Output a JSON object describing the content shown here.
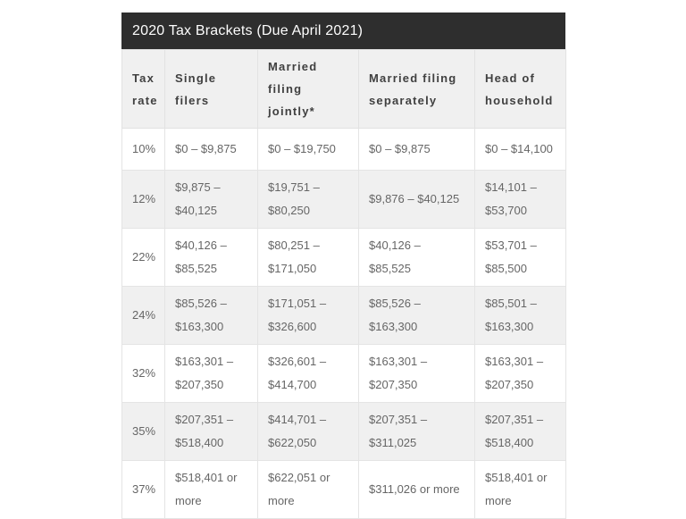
{
  "table": {
    "title": "2020 Tax Brackets (Due April 2021)",
    "columns": [
      "Tax\nrate",
      "Single filers",
      "Married filing\njointly*",
      "Married filing\nseparately",
      "Head of\nhousehold"
    ],
    "rows": [
      [
        "10%",
        "$0 – $9,875",
        "$0 – $19,750",
        "$0 – $9,875",
        "$0 – $14,100"
      ],
      [
        "12%",
        "$9,875 –\n$40,125",
        "$19,751 –\n$80,250",
        "$9,876 – $40,125",
        "$14,101 –\n$53,700"
      ],
      [
        "22%",
        "$40,126 –\n$85,525",
        "$80,251 –\n$171,050",
        "$40,126 –\n$85,525",
        "$53,701 –\n$85,500"
      ],
      [
        "24%",
        "$85,526 –\n$163,300",
        "$171,051 –\n$326,600",
        "$85,526 –\n$163,300",
        "$85,501 –\n$163,300"
      ],
      [
        "32%",
        "$163,301 –\n$207,350",
        "$326,601 –\n$414,700",
        "$163,301 –\n$207,350",
        "$163,301 –\n$207,350"
      ],
      [
        "35%",
        "$207,351 –\n$518,400",
        "$414,701 –\n$622,050",
        "$207,351 –\n$311,025",
        "$207,351 –\n$518,400"
      ],
      [
        "37%",
        "$518,401 or\nmore",
        "$622,051 or\nmore",
        "$311,026 or more",
        "$518,401 or\nmore"
      ]
    ]
  },
  "chart_data": {
    "type": "table",
    "title": "2020 Tax Brackets (Due April 2021)",
    "columns": [
      "Tax rate",
      "Single filers",
      "Married filing jointly*",
      "Married filing separately",
      "Head of household"
    ],
    "rows": [
      [
        "10%",
        "$0 – $9,875",
        "$0 – $19,750",
        "$0 – $9,875",
        "$0 – $14,100"
      ],
      [
        "12%",
        "$9,875 – $40,125",
        "$19,751 – $80,250",
        "$9,876 – $40,125",
        "$14,101 – $53,700"
      ],
      [
        "22%",
        "$40,126 – $85,525",
        "$80,251 – $171,050",
        "$40,126 – $85,525",
        "$53,701 – $85,500"
      ],
      [
        "24%",
        "$85,526 – $163,300",
        "$171,051 – $326,600",
        "$85,526 – $163,300",
        "$85,501 – $163,300"
      ],
      [
        "32%",
        "$163,301 – $207,350",
        "$326,601 – $414,700",
        "$163,301 – $207,350",
        "$163,301 – $207,350"
      ],
      [
        "35%",
        "$207,351 – $518,400",
        "$414,701 – $622,050",
        "$207,351 – $311,025",
        "$207,351 – $518,400"
      ],
      [
        "37%",
        "$518,401 or more",
        "$622,051 or more",
        "$311,026 or more",
        "$518,401 or more"
      ]
    ]
  },
  "colors": {
    "title_bar_bg": "#2e2e2e",
    "title_text": "#fdfdfd",
    "stripe_bg": "#f0f0f0",
    "border": "#e4e4e4",
    "header_text": "#404040",
    "body_text": "#666666"
  }
}
